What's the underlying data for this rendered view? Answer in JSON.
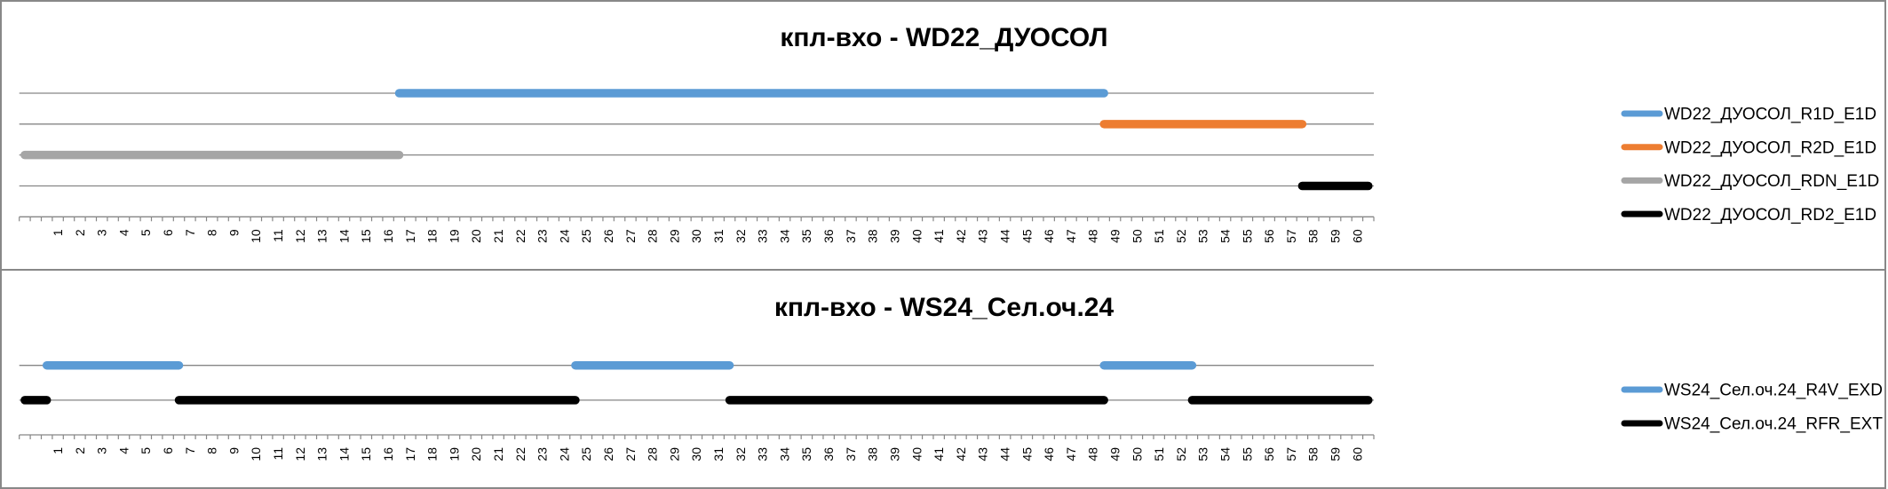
{
  "chart_data": [
    {
      "type": "line",
      "title": "кпл-вхо - WD22_ДУОСОЛ",
      "x_tick_labels": [
        "1",
        "2",
        "3",
        "4",
        "5",
        "6",
        "7",
        "8",
        "9",
        "10",
        "11",
        "12",
        "13",
        "14",
        "15",
        "16",
        "17",
        "18",
        "19",
        "20",
        "21",
        "22",
        "23",
        "24",
        "25",
        "26",
        "27",
        "28",
        "29",
        "30",
        "31",
        "32",
        "33",
        "34",
        "35",
        "36",
        "37",
        "38",
        "39",
        "40",
        "41",
        "42",
        "43",
        "44",
        "45",
        "46",
        "47",
        "48",
        "49",
        "50",
        "51",
        "52",
        "53",
        "54",
        "55",
        "56",
        "57",
        "58",
        "59",
        "60"
      ],
      "xlim": [
        -0.5,
        60.5
      ],
      "x_step": 0.5,
      "ylim": [
        0,
        4
      ],
      "y_axis_visible": false,
      "grid": true,
      "legend": "right",
      "series": [
        {
          "name": "WD22_ДУОСОЛ_R1D_E1D",
          "color": "#5B9BD5",
          "level": 4,
          "segments": [
            [
              16.5,
              48.5
            ]
          ]
        },
        {
          "name": "WD22_ДУОСОЛ_R2D_E1D",
          "color": "#ED7D31",
          "level": 3,
          "segments": [
            [
              48.5,
              57.5
            ]
          ]
        },
        {
          "name": "WD22_ДУОСОЛ_RDN_E1D",
          "color": "#A5A5A5",
          "level": 2,
          "segments": [
            [
              -0.5,
              16.5
            ]
          ]
        },
        {
          "name": "WD22_ДУОСОЛ_RD2_E1D",
          "color": "#000000",
          "level": 1,
          "segments": [
            [
              57.5,
              60.5
            ]
          ]
        }
      ]
    },
    {
      "type": "line",
      "title": "кпл-вхо - WS24_Сел.оч.24",
      "x_tick_labels": [
        "1",
        "2",
        "3",
        "4",
        "5",
        "6",
        "7",
        "8",
        "9",
        "10",
        "11",
        "12",
        "13",
        "14",
        "15",
        "16",
        "17",
        "18",
        "19",
        "20",
        "21",
        "22",
        "23",
        "24",
        "25",
        "26",
        "27",
        "28",
        "29",
        "30",
        "31",
        "32",
        "33",
        "34",
        "35",
        "36",
        "37",
        "38",
        "39",
        "40",
        "41",
        "42",
        "43",
        "44",
        "45",
        "46",
        "47",
        "48",
        "49",
        "50",
        "51",
        "52",
        "53",
        "54",
        "55",
        "56",
        "57",
        "58",
        "59",
        "60"
      ],
      "xlim": [
        -0.5,
        60.5
      ],
      "x_step": 0.5,
      "ylim": [
        0,
        2
      ],
      "y_axis_visible": false,
      "grid": true,
      "legend": "right",
      "series": [
        {
          "name": "WS24_Сел.оч.24_R4V_EXD",
          "color": "#5B9BD5",
          "level": 2,
          "segments": [
            [
              0.5,
              6.5
            ],
            [
              24.5,
              31.5
            ],
            [
              48.5,
              52.5
            ]
          ]
        },
        {
          "name": "WS24_Сел.оч.24_RFR_EXT",
          "color": "#000000",
          "level": 1,
          "segments": [
            [
              -0.5,
              0.5
            ],
            [
              6.5,
              24.5
            ],
            [
              31.5,
              48.5
            ],
            [
              52.5,
              60.5
            ]
          ]
        }
      ]
    }
  ]
}
